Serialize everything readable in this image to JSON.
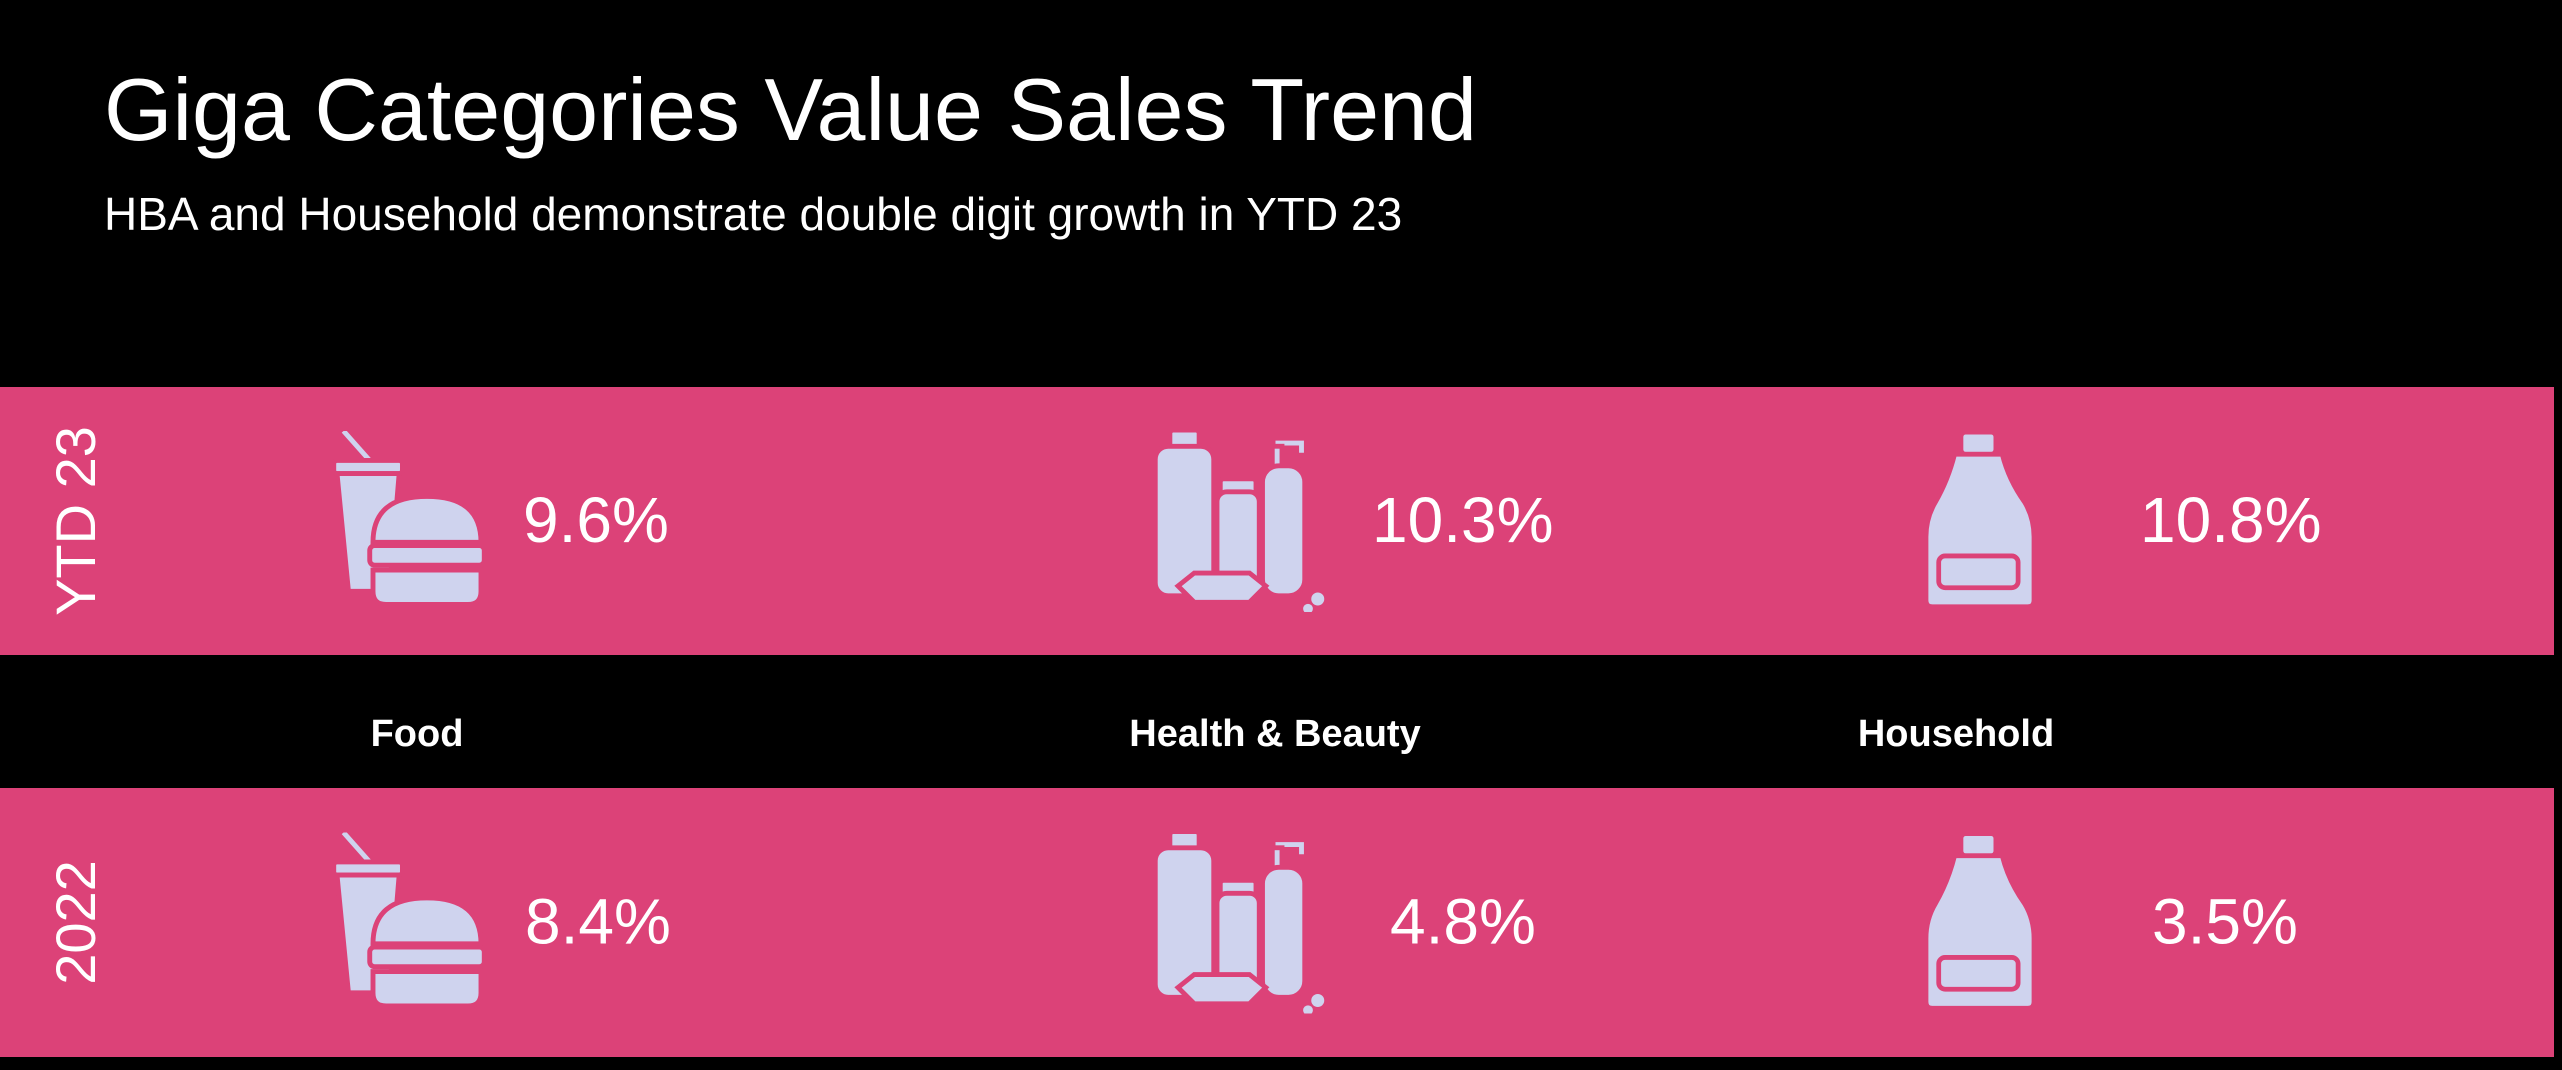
{
  "header": {
    "title": "Giga Categories Value Sales Trend",
    "subtitle": "HBA and Household demonstrate double digit growth in YTD 23"
  },
  "categories": [
    "Food",
    "Health & Beauty",
    "Household"
  ],
  "rows": [
    {
      "label": "YTD 23",
      "values": [
        "9.6%",
        "10.3%",
        "10.8%"
      ]
    },
    {
      "label": "2022",
      "values": [
        "8.4%",
        "4.8%",
        "3.5%"
      ]
    }
  ]
}
